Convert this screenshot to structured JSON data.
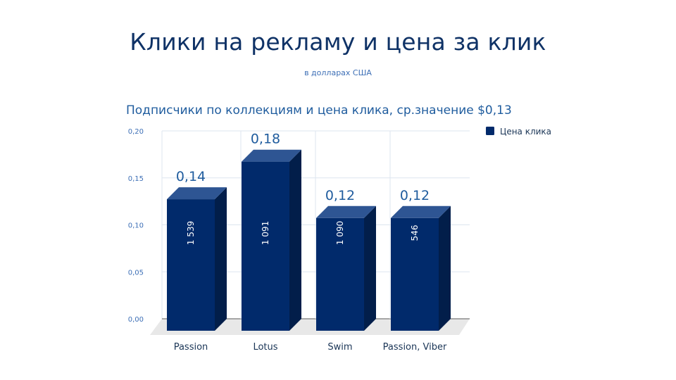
{
  "slide": {
    "title": "Клики на рекламу и цена за клик",
    "subtitle": "в долларах США"
  },
  "chart_data": {
    "type": "bar",
    "title": "Подписчики по коллекциям и цена клика, ср.значение $0,13",
    "categories": [
      "Passion",
      "Lotus",
      "Swim",
      "Passion, Viber"
    ],
    "series": [
      {
        "name": "Цена клика",
        "values": [
          0.14,
          0.18,
          0.12,
          0.12
        ],
        "value_labels": [
          "0,14",
          "0,18",
          "0,12",
          "0,12"
        ],
        "inner_labels": [
          "1 539",
          "1 091",
          "1 090",
          "546"
        ]
      }
    ],
    "ylim": [
      0,
      0.2
    ],
    "yticks": [
      0,
      0.05,
      0.1,
      0.15,
      0.2
    ],
    "ytick_labels": [
      "0,00",
      "0,05",
      "0,10",
      "0,15",
      "0,20"
    ],
    "grid": true,
    "legend_position": "top-right",
    "style": "3d-columns",
    "colors": {
      "front": "#012a6b",
      "top": "#2e5593",
      "side": "#021e4a",
      "floor": "#e8e8e8",
      "grid": "#dde6ef"
    }
  }
}
